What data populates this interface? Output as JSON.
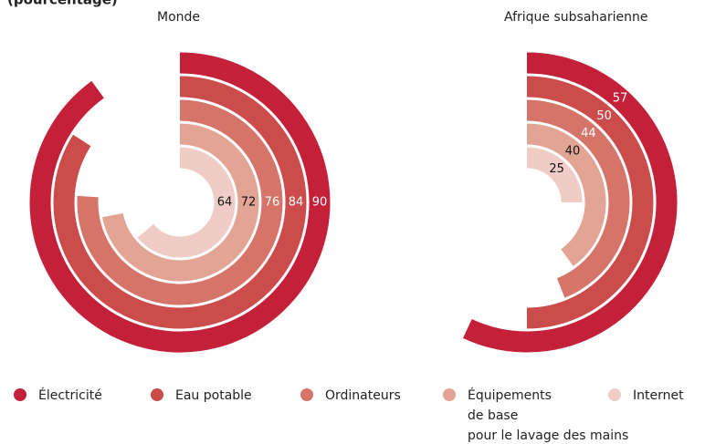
{
  "header": {
    "text": "(pourcentage)"
  },
  "chart_data": [
    {
      "type": "radial_bar",
      "title": "Monde",
      "categories": [
        "Électricité",
        "Eau potable",
        "Ordinateurs",
        "Équipements de base pour le lavage des mains",
        "Internet"
      ],
      "values": [
        90,
        84,
        76,
        72,
        64
      ],
      "colors": [
        "#c4203a",
        "#cc4b4b",
        "#d6746a",
        "#e2a595",
        "#efcdc6"
      ],
      "ylim": [
        0,
        100
      ]
    },
    {
      "type": "radial_bar",
      "title": "Afrique subsaharienne",
      "categories": [
        "Électricité",
        "Eau potable",
        "Ordinateurs",
        "Équipements de base pour le lavage des mains",
        "Internet"
      ],
      "values": [
        57,
        50,
        44,
        40,
        25
      ],
      "colors": [
        "#c4203a",
        "#cc4b4b",
        "#d6746a",
        "#e2a595",
        "#efcdc6"
      ],
      "ylim": [
        0,
        100
      ]
    }
  ],
  "legend": [
    {
      "lines": [
        "Électricité"
      ]
    },
    {
      "lines": [
        "Eau potable"
      ]
    },
    {
      "lines": [
        "Ordinateurs"
      ]
    },
    {
      "lines": [
        "Équipements",
        "de base",
        "pour le lavage des mains"
      ]
    },
    {
      "lines": [
        "Internet"
      ]
    }
  ]
}
